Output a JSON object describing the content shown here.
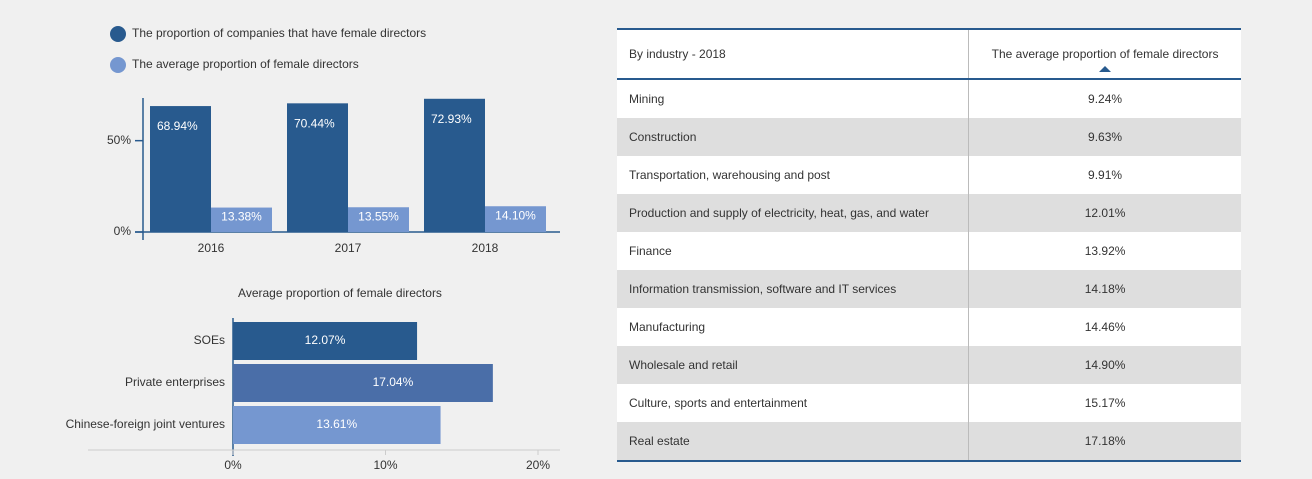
{
  "chart_data": [
    {
      "type": "bar",
      "orientation": "vertical",
      "categories": [
        "2016",
        "2017",
        "2018"
      ],
      "series": [
        {
          "name": "The proportion of companies that have female directors",
          "color": "#285a8e",
          "values": [
            68.94,
            70.44,
            72.93
          ],
          "value_labels": [
            "68.94%",
            "70.44%",
            "72.93%"
          ]
        },
        {
          "name": "The average proportion of female directors",
          "color": "#7597d0",
          "values": [
            13.38,
            13.55,
            14.1
          ],
          "value_labels": [
            "13.38%",
            "13.55%",
            "14.10%"
          ]
        }
      ],
      "ylim": [
        0,
        75
      ],
      "yticks": [
        {
          "value": 0,
          "label": "0%"
        },
        {
          "value": 50,
          "label": "50%"
        }
      ]
    },
    {
      "type": "bar",
      "orientation": "horizontal",
      "title": "Average proportion of female directors",
      "categories": [
        "SOEs",
        "Private enterprises",
        "Chinese-foreign joint ventures"
      ],
      "values": [
        12.07,
        17.04,
        13.61
      ],
      "value_labels": [
        "12.07%",
        "17.04%",
        "13.61%"
      ],
      "colors": [
        "#285a8e",
        "#4a6ea8",
        "#7597d0"
      ],
      "xlim": [
        0,
        20
      ],
      "xticks": [
        {
          "value": 0,
          "label": "0%"
        },
        {
          "value": 10,
          "label": "10%"
        },
        {
          "value": 20,
          "label": "20%"
        }
      ]
    }
  ],
  "table": {
    "header": [
      "By industry - 2018",
      "The average proportion of female directors"
    ],
    "rows": [
      [
        "Mining",
        "9.24%"
      ],
      [
        "Construction",
        "9.63%"
      ],
      [
        "Transportation, warehousing and post",
        "9.91%"
      ],
      [
        "Production and supply of electricity, heat, gas, and water",
        "12.01%"
      ],
      [
        "Finance",
        "13.92%"
      ],
      [
        "Information transmission, software and IT services",
        "14.18%"
      ],
      [
        "Manufacturing",
        "14.46%"
      ],
      [
        "Wholesale and retail",
        "14.90%"
      ],
      [
        "Culture, sports and entertainment",
        "15.17%"
      ],
      [
        "Real estate",
        "17.18%"
      ]
    ]
  }
}
